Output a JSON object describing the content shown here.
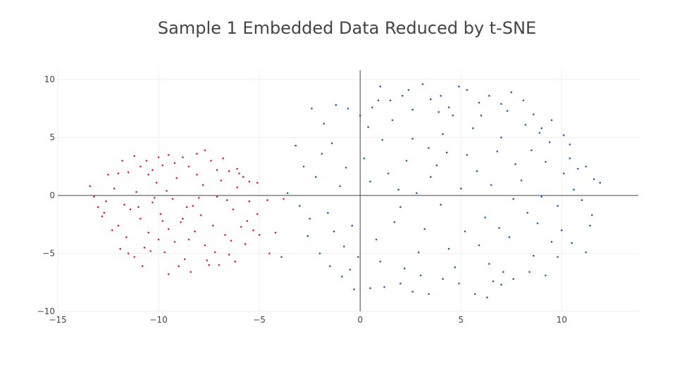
{
  "chart_data": {
    "type": "scatter",
    "title": "Sample 1 Embedded Data Reduced by t-SNE",
    "xlabel": "",
    "ylabel": "",
    "xlim": [
      -15,
      13.8
    ],
    "ylim": [
      -10,
      10.8
    ],
    "x_ticks": [
      -15,
      -10,
      -5,
      0,
      5,
      10
    ],
    "y_ticks": [
      -10,
      -5,
      0,
      5,
      10
    ],
    "x_tick_labels": [
      "−15",
      "−10",
      "−5",
      "0",
      "5",
      "10"
    ],
    "y_tick_labels": [
      "−10",
      "−5",
      "0",
      "5",
      "10"
    ],
    "grid": true,
    "zero_lines": true,
    "legend": "none",
    "series": [
      {
        "color": "#d62728",
        "points": [
          [
            -12.5,
            1.8
          ],
          [
            -12.0,
            1.9
          ],
          [
            -11.8,
            3.0
          ],
          [
            -11.5,
            2.0
          ],
          [
            -11.2,
            3.4
          ],
          [
            -10.9,
            2.5
          ],
          [
            -10.6,
            3.0
          ],
          [
            -10.3,
            2.2
          ],
          [
            -10.0,
            3.3
          ],
          [
            -9.8,
            2.6
          ],
          [
            -9.5,
            3.5
          ],
          [
            -9.2,
            2.8
          ],
          [
            -8.8,
            3.3
          ],
          [
            -8.5,
            2.5
          ],
          [
            -8.1,
            3.6
          ],
          [
            -7.7,
            3.9
          ],
          [
            -7.4,
            3.0
          ],
          [
            -7.1,
            2.2
          ],
          [
            -6.8,
            3.2
          ],
          [
            -6.5,
            2.1
          ],
          [
            -6.1,
            2.3
          ],
          [
            -5.8,
            1.6
          ],
          [
            -5.5,
            1.2
          ],
          [
            -5.1,
            1.1
          ],
          [
            -13.4,
            0.8
          ],
          [
            -13.2,
            -0.1
          ],
          [
            -13.0,
            -1.0
          ],
          [
            -12.8,
            -1.8
          ],
          [
            -12.6,
            -0.5
          ],
          [
            -12.2,
            0.6
          ],
          [
            -12.0,
            -2.6
          ],
          [
            -11.9,
            -4.6
          ],
          [
            -11.6,
            -3.6
          ],
          [
            -11.4,
            -1.2
          ],
          [
            -11.1,
            0.3
          ],
          [
            -10.9,
            -2.0
          ],
          [
            -10.7,
            -4.5
          ],
          [
            -10.5,
            -3.2
          ],
          [
            -10.3,
            -0.6
          ],
          [
            -10.1,
            1.1
          ],
          [
            -9.9,
            -1.6
          ],
          [
            -9.7,
            -4.9
          ],
          [
            -9.5,
            -2.9
          ],
          [
            -9.3,
            -0.3
          ],
          [
            -9.1,
            1.5
          ],
          [
            -8.9,
            -2.3
          ],
          [
            -8.7,
            -5.5
          ],
          [
            -8.5,
            -3.8
          ],
          [
            -8.3,
            -0.9
          ],
          [
            -8.1,
            1.8
          ],
          [
            -7.9,
            -1.7
          ],
          [
            -7.7,
            -4.3
          ],
          [
            -7.5,
            -6.0
          ],
          [
            -7.3,
            -2.6
          ],
          [
            -7.1,
            -0.1
          ],
          [
            -6.9,
            1.3
          ],
          [
            -6.7,
            -3.4
          ],
          [
            -6.5,
            -5.1
          ],
          [
            -6.3,
            -1.2
          ],
          [
            -6.1,
            0.7
          ],
          [
            -5.9,
            -2.7
          ],
          [
            -5.7,
            -4.2
          ],
          [
            -5.5,
            -0.5
          ],
          [
            -5.3,
            -3.0
          ],
          [
            -5.1,
            -1.6
          ],
          [
            -5.0,
            -3.4
          ],
          [
            -11.5,
            -5.0
          ],
          [
            -11.0,
            -1.0
          ],
          [
            -10.5,
            1.8
          ],
          [
            -10.0,
            -3.8
          ],
          [
            -9.6,
            0.4
          ],
          [
            -9.0,
            -6.1
          ],
          [
            -8.6,
            -1.0
          ],
          [
            -8.2,
            -3.1
          ],
          [
            -7.8,
            0.9
          ],
          [
            -7.2,
            -4.9
          ],
          [
            -6.6,
            -0.4
          ],
          [
            -6.2,
            -5.7
          ],
          [
            -6.0,
            1.9
          ],
          [
            -9.5,
            -6.8
          ],
          [
            -8.8,
            -2.0
          ],
          [
            -7.6,
            -5.6
          ],
          [
            -10.2,
            -0.2
          ],
          [
            -11.7,
            -0.8
          ],
          [
            -12.3,
            -3.0
          ],
          [
            -12.7,
            -1.5
          ],
          [
            -11.2,
            -5.3
          ],
          [
            -10.8,
            -6.1
          ],
          [
            -7.0,
            -6.0
          ],
          [
            -8.4,
            -6.6
          ],
          [
            -9.2,
            -4.0
          ],
          [
            -10.4,
            -4.8
          ],
          [
            -6.4,
            -3.9
          ],
          [
            -5.6,
            -2.2
          ],
          [
            -8.0,
            -0.2
          ],
          [
            -9.8,
            -2.2
          ]
        ]
      },
      {
        "color": "#1f5fbf",
        "points": [
          [
            -2.4,
            7.5
          ],
          [
            -1.8,
            6.2
          ],
          [
            -1.2,
            7.8
          ],
          [
            -0.6,
            7.5
          ],
          [
            0.0,
            6.9
          ],
          [
            0.6,
            7.6
          ],
          [
            1.0,
            9.4
          ],
          [
            1.5,
            8.2
          ],
          [
            2.1,
            8.6
          ],
          [
            2.6,
            7.4
          ],
          [
            3.1,
            9.6
          ],
          [
            3.5,
            8.3
          ],
          [
            4.0,
            8.6
          ],
          [
            4.4,
            7.6
          ],
          [
            4.9,
            9.4
          ],
          [
            5.3,
            9.1
          ],
          [
            5.9,
            8.0
          ],
          [
            6.4,
            8.6
          ],
          [
            7.0,
            7.9
          ],
          [
            7.5,
            8.9
          ],
          [
            8.1,
            8.2
          ],
          [
            8.6,
            7.0
          ],
          [
            9.0,
            5.8
          ],
          [
            9.5,
            6.5
          ],
          [
            10.1,
            5.2
          ],
          [
            10.4,
            4.4
          ],
          [
            10.8,
            2.3
          ],
          [
            11.2,
            2.5
          ],
          [
            11.6,
            1.4
          ],
          [
            11.9,
            1.1
          ],
          [
            -3.2,
            4.3
          ],
          [
            -2.8,
            2.5
          ],
          [
            -3.0,
            -0.9
          ],
          [
            -2.6,
            -3.5
          ],
          [
            -2.0,
            -5.0
          ],
          [
            -1.5,
            -6.1
          ],
          [
            -0.9,
            -7.0
          ],
          [
            -0.3,
            -8.1
          ],
          [
            0.5,
            -8.0
          ],
          [
            1.2,
            -7.9
          ],
          [
            2.0,
            -7.6
          ],
          [
            2.6,
            -8.3
          ],
          [
            3.4,
            -8.5
          ],
          [
            4.1,
            -7.2
          ],
          [
            4.9,
            -7.6
          ],
          [
            5.7,
            -8.5
          ],
          [
            6.3,
            -8.8
          ],
          [
            7.0,
            -7.7
          ],
          [
            7.6,
            -7.2
          ],
          [
            8.4,
            -6.6
          ],
          [
            9.2,
            -6.9
          ],
          [
            9.8,
            -5.3
          ],
          [
            10.5,
            -4.1
          ],
          [
            11.2,
            -4.9
          ],
          [
            11.5,
            -1.7
          ],
          [
            11.0,
            -0.4
          ],
          [
            -2.2,
            1.6
          ],
          [
            -1.6,
            -1.5
          ],
          [
            -1.0,
            0.8
          ],
          [
            -0.4,
            -2.6
          ],
          [
            0.2,
            3.2
          ],
          [
            0.8,
            -3.8
          ],
          [
            1.4,
            1.9
          ],
          [
            2.0,
            -1.0
          ],
          [
            2.6,
            4.9
          ],
          [
            3.2,
            -2.9
          ],
          [
            3.8,
            2.6
          ],
          [
            4.4,
            -4.6
          ],
          [
            5.0,
            0.6
          ],
          [
            5.6,
            5.8
          ],
          [
            6.2,
            -1.9
          ],
          [
            6.8,
            3.8
          ],
          [
            7.4,
            -3.6
          ],
          [
            8.0,
            1.3
          ],
          [
            8.6,
            -5.2
          ],
          [
            9.2,
            2.9
          ],
          [
            9.8,
            -0.9
          ],
          [
            10.4,
            3.2
          ],
          [
            -1.4,
            4.5
          ],
          [
            -0.8,
            -4.4
          ],
          [
            0.4,
            5.9
          ],
          [
            1.0,
            -5.7
          ],
          [
            1.6,
            6.5
          ],
          [
            2.2,
            -6.3
          ],
          [
            2.8,
            0.2
          ],
          [
            3.4,
            4.1
          ],
          [
            4.0,
            -0.8
          ],
          [
            4.6,
            6.9
          ],
          [
            5.2,
            -3.1
          ],
          [
            5.8,
            2.1
          ],
          [
            6.4,
            -5.9
          ],
          [
            7.0,
            5.0
          ],
          [
            7.6,
            -0.3
          ],
          [
            8.2,
            6.1
          ],
          [
            8.8,
            -2.4
          ],
          [
            9.4,
            4.6
          ],
          [
            10.0,
            -3.0
          ],
          [
            10.6,
            0.5
          ],
          [
            -2.5,
            -2.0
          ],
          [
            -1.9,
            3.6
          ],
          [
            -1.3,
            -3.1
          ],
          [
            -0.7,
            2.4
          ],
          [
            -0.1,
            -5.3
          ],
          [
            0.5,
            1.2
          ],
          [
            1.1,
            4.8
          ],
          [
            1.7,
            -2.3
          ],
          [
            2.3,
            3.0
          ],
          [
            2.9,
            -4.9
          ],
          [
            3.5,
            1.6
          ],
          [
            4.1,
            5.3
          ],
          [
            4.7,
            -6.2
          ],
          [
            5.3,
            3.5
          ],
          [
            5.9,
            -4.3
          ],
          [
            6.5,
            0.9
          ],
          [
            7.1,
            -6.6
          ],
          [
            7.7,
            2.7
          ],
          [
            8.3,
            -1.5
          ],
          [
            8.9,
            5.4
          ],
          [
            9.5,
            -4.0
          ],
          [
            10.1,
            1.9
          ],
          [
            0.9,
            8.2
          ],
          [
            2.4,
            9.1
          ],
          [
            3.9,
            7.2
          ],
          [
            6.0,
            6.9
          ],
          [
            7.3,
            7.3
          ],
          [
            -0.5,
            -6.4
          ],
          [
            3.0,
            -6.9
          ],
          [
            6.6,
            -7.4
          ],
          [
            9.0,
            -0.1
          ],
          [
            11.4,
            -2.6
          ],
          [
            1.9,
            0.5
          ],
          [
            4.3,
            3.7
          ],
          [
            6.9,
            -2.8
          ],
          [
            8.5,
            3.9
          ],
          [
            -3.6,
            0.2
          ],
          [
            -3.9,
            -5.3
          ]
        ]
      },
      {
        "color": "#d62728",
        "points": [
          [
            -4.5,
            -5.0
          ],
          [
            -4.2,
            -3.2
          ],
          [
            -4.6,
            -0.4
          ],
          [
            -3.8,
            -0.3
          ]
        ]
      }
    ]
  }
}
